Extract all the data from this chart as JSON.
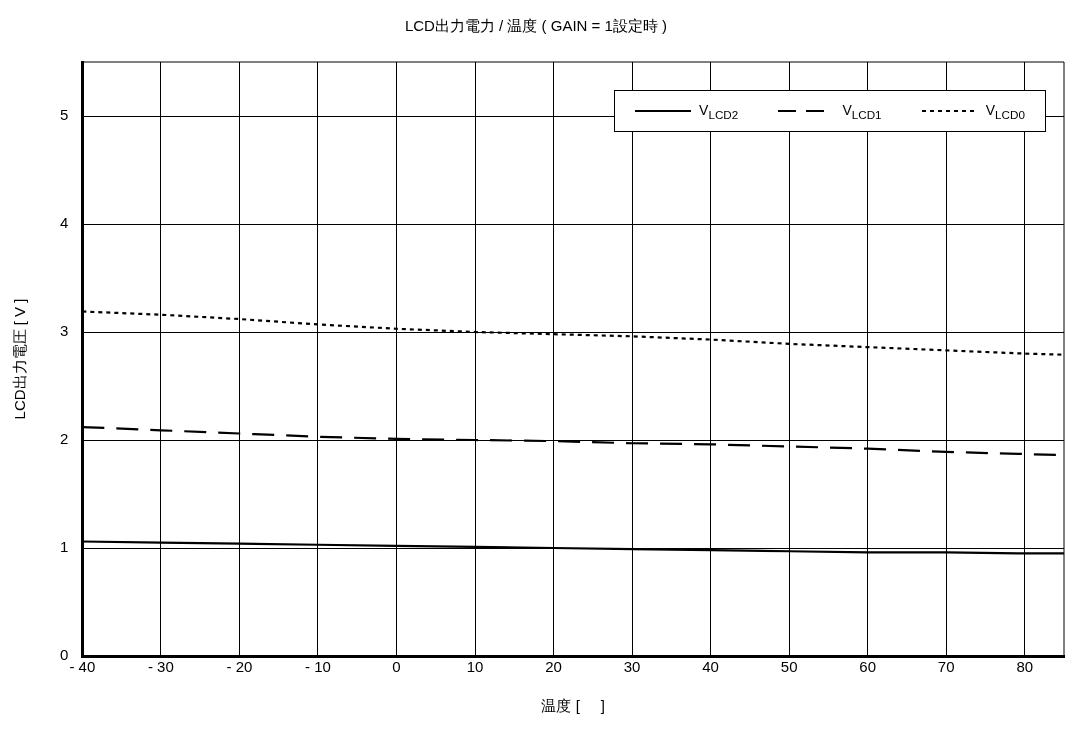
{
  "chart_data": {
    "type": "line",
    "title": "LCD出力電力 / 温度 ( GAIN = 1設定時 )",
    "xlabel": "温度 [     ]",
    "ylabel": "LCD出力電圧 [ V ]",
    "x": [
      -40,
      -30,
      -20,
      -10,
      0,
      10,
      20,
      30,
      40,
      50,
      60,
      70,
      80,
      85
    ],
    "series": [
      {
        "name": "V$_{LCD2}$",
        "color": "#000000",
        "line_style": "solid",
        "values": [
          1.06,
          1.05,
          1.04,
          1.03,
          1.02,
          1.01,
          1.0,
          0.99,
          0.98,
          0.97,
          0.96,
          0.96,
          0.95,
          0.95
        ]
      },
      {
        "name": "V$_{LCD1}$",
        "color": "#000000",
        "line_style": "dashed",
        "values": [
          2.12,
          2.09,
          2.06,
          2.03,
          2.01,
          2.0,
          1.99,
          1.97,
          1.96,
          1.94,
          1.92,
          1.89,
          1.87,
          1.86
        ]
      },
      {
        "name": "V$_{LCD0}$",
        "color": "#000000",
        "line_style": "dotted",
        "values": [
          3.19,
          3.16,
          3.12,
          3.07,
          3.03,
          3.0,
          2.98,
          2.96,
          2.93,
          2.89,
          2.86,
          2.83,
          2.8,
          2.79
        ]
      }
    ],
    "xlim": [
      -40,
      85
    ],
    "ylim": [
      0,
      5.5
    ],
    "xticks": [
      {
        "value": -40,
        "label": "- 40"
      },
      {
        "value": -30,
        "label": "- 30"
      },
      {
        "value": -20,
        "label": "- 20"
      },
      {
        "value": -10,
        "label": "- 10"
      },
      0,
      10,
      20,
      30,
      40,
      50,
      60,
      70,
      80
    ],
    "yticks": [
      0,
      1,
      2,
      3,
      4,
      5
    ],
    "grid": true,
    "legend": "top right",
    "marker": "none"
  }
}
